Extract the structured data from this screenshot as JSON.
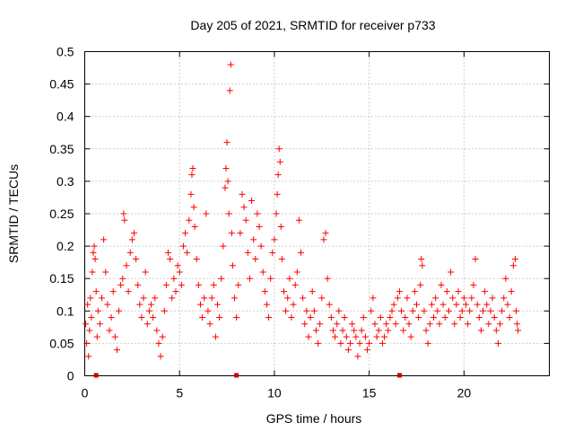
{
  "chart_data": {
    "type": "scatter",
    "title": "Day 205 of 2021, SRMTID for receiver p733",
    "xlabel": "GPS time / hours",
    "ylabel": "SRMTID / TECUs",
    "xlim": [
      0,
      24.5
    ],
    "ylim": [
      0,
      0.5
    ],
    "xticks": [
      0,
      5,
      10,
      15,
      20
    ],
    "xtick_labels": [
      "0",
      "5",
      "10",
      "15",
      "20"
    ],
    "yticks": [
      0,
      0.05,
      0.1,
      0.15,
      0.2,
      0.25,
      0.3,
      0.35,
      0.4,
      0.45,
      0.5
    ],
    "ytick_labels": [
      "0",
      "0.05",
      "0.1",
      "0.15",
      "0.2",
      "0.25",
      "0.3",
      "0.35",
      "0.4",
      "0.45",
      "0.5"
    ],
    "grid": true,
    "marker": "plus",
    "color": "#ff0000",
    "series": [
      {
        "name": "SRMTID",
        "points": [
          [
            0.05,
            0.08
          ],
          [
            0.1,
            0.05
          ],
          [
            0.15,
            0.11
          ],
          [
            0.2,
            0.03
          ],
          [
            0.25,
            0.07
          ],
          [
            0.3,
            0.12
          ],
          [
            0.35,
            0.09
          ],
          [
            0.4,
            0.16
          ],
          [
            0.45,
            0.19
          ],
          [
            0.5,
            0.2
          ],
          [
            0.55,
            0.18
          ],
          [
            0.6,
            0.13
          ],
          [
            0.65,
            0.06
          ],
          [
            0.7,
            0.1
          ],
          [
            0.8,
            0.08
          ],
          [
            0.9,
            0.12
          ],
          [
            1.0,
            0.21
          ],
          [
            1.1,
            0.16
          ],
          [
            1.2,
            0.11
          ],
          [
            1.3,
            0.07
          ],
          [
            1.4,
            0.09
          ],
          [
            1.5,
            0.13
          ],
          [
            1.6,
            0.06
          ],
          [
            1.7,
            0.04
          ],
          [
            1.8,
            0.1
          ],
          [
            1.9,
            0.14
          ],
          [
            2.0,
            0.15
          ],
          [
            2.05,
            0.25
          ],
          [
            2.1,
            0.24
          ],
          [
            2.2,
            0.17
          ],
          [
            2.3,
            0.13
          ],
          [
            2.4,
            0.19
          ],
          [
            2.5,
            0.21
          ],
          [
            2.6,
            0.22
          ],
          [
            2.7,
            0.18
          ],
          [
            2.8,
            0.14
          ],
          [
            2.9,
            0.11
          ],
          [
            3.0,
            0.09
          ],
          [
            3.1,
            0.12
          ],
          [
            3.2,
            0.16
          ],
          [
            3.3,
            0.08
          ],
          [
            3.4,
            0.1
          ],
          [
            3.5,
            0.11
          ],
          [
            3.6,
            0.09
          ],
          [
            3.7,
            0.12
          ],
          [
            3.8,
            0.07
          ],
          [
            3.9,
            0.05
          ],
          [
            4.0,
            0.03
          ],
          [
            4.1,
            0.06
          ],
          [
            4.2,
            0.1
          ],
          [
            4.3,
            0.14
          ],
          [
            4.4,
            0.19
          ],
          [
            4.5,
            0.18
          ],
          [
            4.6,
            0.12
          ],
          [
            4.7,
            0.15
          ],
          [
            4.8,
            0.13
          ],
          [
            4.9,
            0.17
          ],
          [
            5.0,
            0.16
          ],
          [
            5.1,
            0.14
          ],
          [
            5.2,
            0.2
          ],
          [
            5.3,
            0.22
          ],
          [
            5.4,
            0.19
          ],
          [
            5.5,
            0.24
          ],
          [
            5.6,
            0.28
          ],
          [
            5.65,
            0.31
          ],
          [
            5.7,
            0.32
          ],
          [
            5.75,
            0.26
          ],
          [
            5.8,
            0.23
          ],
          [
            5.9,
            0.18
          ],
          [
            6.0,
            0.14
          ],
          [
            6.1,
            0.11
          ],
          [
            6.2,
            0.09
          ],
          [
            6.3,
            0.12
          ],
          [
            6.4,
            0.25
          ],
          [
            6.5,
            0.1
          ],
          [
            6.6,
            0.08
          ],
          [
            6.7,
            0.12
          ],
          [
            6.8,
            0.14
          ],
          [
            6.9,
            0.06
          ],
          [
            7.0,
            0.11
          ],
          [
            7.1,
            0.09
          ],
          [
            7.2,
            0.15
          ],
          [
            7.3,
            0.2
          ],
          [
            7.4,
            0.29
          ],
          [
            7.45,
            0.32
          ],
          [
            7.5,
            0.36
          ],
          [
            7.55,
            0.3
          ],
          [
            7.6,
            0.25
          ],
          [
            7.65,
            0.44
          ],
          [
            7.7,
            0.48
          ],
          [
            7.75,
            0.22
          ],
          [
            7.8,
            0.17
          ],
          [
            7.9,
            0.12
          ],
          [
            8.0,
            0.09
          ],
          [
            8.1,
            0.14
          ],
          [
            8.2,
            0.22
          ],
          [
            8.3,
            0.28
          ],
          [
            8.4,
            0.26
          ],
          [
            8.5,
            0.24
          ],
          [
            8.6,
            0.19
          ],
          [
            8.7,
            0.15
          ],
          [
            8.8,
            0.27
          ],
          [
            8.9,
            0.21
          ],
          [
            9.0,
            0.18
          ],
          [
            9.1,
            0.25
          ],
          [
            9.2,
            0.23
          ],
          [
            9.3,
            0.2
          ],
          [
            9.4,
            0.16
          ],
          [
            9.5,
            0.13
          ],
          [
            9.6,
            0.11
          ],
          [
            9.7,
            0.09
          ],
          [
            9.8,
            0.15
          ],
          [
            9.9,
            0.19
          ],
          [
            10.0,
            0.21
          ],
          [
            10.1,
            0.25
          ],
          [
            10.15,
            0.28
          ],
          [
            10.2,
            0.31
          ],
          [
            10.25,
            0.35
          ],
          [
            10.3,
            0.33
          ],
          [
            10.35,
            0.23
          ],
          [
            10.4,
            0.18
          ],
          [
            10.5,
            0.13
          ],
          [
            10.6,
            0.1
          ],
          [
            10.7,
            0.12
          ],
          [
            10.8,
            0.15
          ],
          [
            10.9,
            0.09
          ],
          [
            11.0,
            0.11
          ],
          [
            11.1,
            0.14
          ],
          [
            11.2,
            0.16
          ],
          [
            11.3,
            0.24
          ],
          [
            11.4,
            0.19
          ],
          [
            11.5,
            0.12
          ],
          [
            11.6,
            0.08
          ],
          [
            11.7,
            0.1
          ],
          [
            11.8,
            0.06
          ],
          [
            11.9,
            0.09
          ],
          [
            12.0,
            0.13
          ],
          [
            12.1,
            0.1
          ],
          [
            12.2,
            0.07
          ],
          [
            12.3,
            0.05
          ],
          [
            12.4,
            0.08
          ],
          [
            12.5,
            0.12
          ],
          [
            12.6,
            0.21
          ],
          [
            12.7,
            0.22
          ],
          [
            12.8,
            0.15
          ],
          [
            12.9,
            0.11
          ],
          [
            13.0,
            0.09
          ],
          [
            13.1,
            0.07
          ],
          [
            13.2,
            0.06
          ],
          [
            13.3,
            0.08
          ],
          [
            13.4,
            0.1
          ],
          [
            13.5,
            0.05
          ],
          [
            13.6,
            0.07
          ],
          [
            13.7,
            0.09
          ],
          [
            13.8,
            0.06
          ],
          [
            13.9,
            0.04
          ],
          [
            14.0,
            0.05
          ],
          [
            14.1,
            0.08
          ],
          [
            14.2,
            0.07
          ],
          [
            14.3,
            0.06
          ],
          [
            14.4,
            0.03
          ],
          [
            14.5,
            0.05
          ],
          [
            14.6,
            0.07
          ],
          [
            14.7,
            0.09
          ],
          [
            14.8,
            0.06
          ],
          [
            14.9,
            0.04
          ],
          [
            15.0,
            0.05
          ],
          [
            15.1,
            0.1
          ],
          [
            15.2,
            0.12
          ],
          [
            15.3,
            0.08
          ],
          [
            15.4,
            0.06
          ],
          [
            15.5,
            0.07
          ],
          [
            15.6,
            0.09
          ],
          [
            15.7,
            0.05
          ],
          [
            15.8,
            0.06
          ],
          [
            15.9,
            0.08
          ],
          [
            16.0,
            0.07
          ],
          [
            16.1,
            0.09
          ],
          [
            16.2,
            0.1
          ],
          [
            16.3,
            0.11
          ],
          [
            16.4,
            0.08
          ],
          [
            16.5,
            0.12
          ],
          [
            16.6,
            0.13
          ],
          [
            16.7,
            0.1
          ],
          [
            16.8,
            0.07
          ],
          [
            16.9,
            0.09
          ],
          [
            17.0,
            0.12
          ],
          [
            17.1,
            0.08
          ],
          [
            17.2,
            0.06
          ],
          [
            17.3,
            0.1
          ],
          [
            17.4,
            0.13
          ],
          [
            17.5,
            0.11
          ],
          [
            17.6,
            0.09
          ],
          [
            17.7,
            0.14
          ],
          [
            17.75,
            0.18
          ],
          [
            17.8,
            0.17
          ],
          [
            17.9,
            0.1
          ],
          [
            18.0,
            0.07
          ],
          [
            18.1,
            0.05
          ],
          [
            18.2,
            0.08
          ],
          [
            18.3,
            0.11
          ],
          [
            18.4,
            0.09
          ],
          [
            18.5,
            0.12
          ],
          [
            18.6,
            0.1
          ],
          [
            18.7,
            0.08
          ],
          [
            18.8,
            0.14
          ],
          [
            18.9,
            0.11
          ],
          [
            19.0,
            0.09
          ],
          [
            19.1,
            0.13
          ],
          [
            19.2,
            0.1
          ],
          [
            19.3,
            0.16
          ],
          [
            19.4,
            0.12
          ],
          [
            19.5,
            0.08
          ],
          [
            19.6,
            0.11
          ],
          [
            19.7,
            0.13
          ],
          [
            19.8,
            0.09
          ],
          [
            19.9,
            0.1
          ],
          [
            20.0,
            0.12
          ],
          [
            20.1,
            0.11
          ],
          [
            20.2,
            0.08
          ],
          [
            20.3,
            0.1
          ],
          [
            20.4,
            0.12
          ],
          [
            20.5,
            0.14
          ],
          [
            20.6,
            0.18
          ],
          [
            20.7,
            0.11
          ],
          [
            20.8,
            0.09
          ],
          [
            20.9,
            0.07
          ],
          [
            21.0,
            0.1
          ],
          [
            21.1,
            0.13
          ],
          [
            21.2,
            0.11
          ],
          [
            21.3,
            0.08
          ],
          [
            21.4,
            0.1
          ],
          [
            21.5,
            0.12
          ],
          [
            21.6,
            0.09
          ],
          [
            21.7,
            0.07
          ],
          [
            21.8,
            0.05
          ],
          [
            21.9,
            0.08
          ],
          [
            22.0,
            0.1
          ],
          [
            22.1,
            0.12
          ],
          [
            22.2,
            0.15
          ],
          [
            22.3,
            0.11
          ],
          [
            22.4,
            0.09
          ],
          [
            22.5,
            0.13
          ],
          [
            22.6,
            0.17
          ],
          [
            22.7,
            0.18
          ],
          [
            22.75,
            0.1
          ],
          [
            22.8,
            0.08
          ],
          [
            22.85,
            0.07
          ]
        ]
      }
    ],
    "gap_markers_x": [
      0.6,
      8.0,
      16.6
    ]
  }
}
